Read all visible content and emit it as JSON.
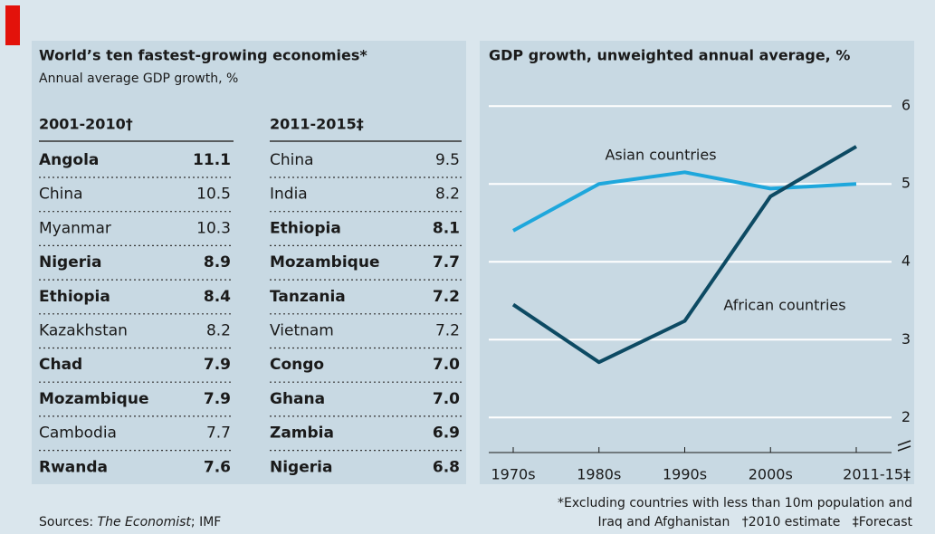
{
  "table": {
    "title": "World’s ten fastest-growing economies*",
    "subtitle": "Annual average GDP growth, %",
    "columns": [
      {
        "header": "2001-2010†",
        "rows": [
          {
            "name": "Angola",
            "value": "11.1",
            "bold": true
          },
          {
            "name": "China",
            "value": "10.5",
            "bold": false
          },
          {
            "name": "Myanmar",
            "value": "10.3",
            "bold": false
          },
          {
            "name": "Nigeria",
            "value": "8.9",
            "bold": true
          },
          {
            "name": "Ethiopia",
            "value": "8.4",
            "bold": true
          },
          {
            "name": "Kazakhstan",
            "value": "8.2",
            "bold": false
          },
          {
            "name": "Chad",
            "value": "7.9",
            "bold": true
          },
          {
            "name": "Mozambique",
            "value": "7.9",
            "bold": true
          },
          {
            "name": "Cambodia",
            "value": "7.7",
            "bold": false
          },
          {
            "name": "Rwanda",
            "value": "7.6",
            "bold": true
          }
        ]
      },
      {
        "header": "2011-2015‡",
        "rows": [
          {
            "name": "China",
            "value": "9.5",
            "bold": false
          },
          {
            "name": "India",
            "value": "8.2",
            "bold": false
          },
          {
            "name": "Ethiopia",
            "value": "8.1",
            "bold": true
          },
          {
            "name": "Mozambique",
            "value": "7.7",
            "bold": true
          },
          {
            "name": "Tanzania",
            "value": "7.2",
            "bold": true
          },
          {
            "name": "Vietnam",
            "value": "7.2",
            "bold": false
          },
          {
            "name": "Congo",
            "value": "7.0",
            "bold": true
          },
          {
            "name": "Ghana",
            "value": "7.0",
            "bold": true
          },
          {
            "name": "Zambia",
            "value": "6.9",
            "bold": true
          },
          {
            "name": "Nigeria",
            "value": "6.8",
            "bold": true
          }
        ]
      }
    ]
  },
  "chart_data": {
    "type": "line",
    "title": "GDP growth, unweighted annual average, %",
    "categories": [
      "1970s",
      "1980s",
      "1990s",
      "2000s",
      "2011-15‡"
    ],
    "series": [
      {
        "name": "Asian countries",
        "color": "#1ea7dc",
        "values": [
          4.4,
          5.0,
          5.15,
          4.94,
          5.0
        ]
      },
      {
        "name": "African countries",
        "color": "#0d4a63",
        "values": [
          3.45,
          2.71,
          3.24,
          4.84,
          5.48
        ]
      }
    ],
    "ylim": [
      1.55,
      6.2
    ],
    "yticks": [
      2,
      3,
      4,
      5,
      6
    ],
    "grid": true
  },
  "footnotes": [
    "*Excluding countries with less than 10m population and",
    "Iraq and Afghanistan   †2010 estimate   ‡Forecast"
  ],
  "sources": {
    "prefix": "Sources: ",
    "publication": "The Economist",
    "suffix": "; IMF"
  }
}
